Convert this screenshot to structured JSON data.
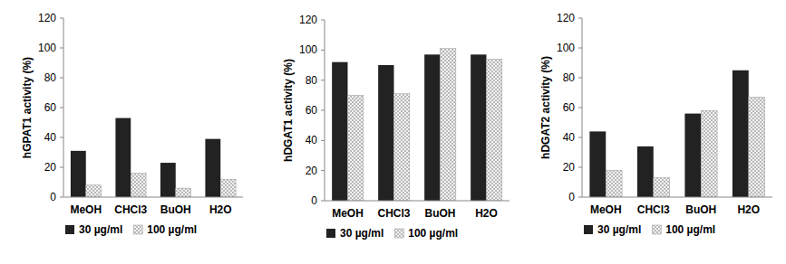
{
  "chart_data": [
    {
      "type": "bar",
      "y_label": "hGPAT1 activity (%)",
      "categories": [
        "MeOH",
        "CHCl3",
        "BuOH",
        "H2O"
      ],
      "series": [
        {
          "name": "30 µg/ml",
          "color": "#222222",
          "values": [
            31,
            53,
            23,
            39
          ]
        },
        {
          "name": "100 µg/ml",
          "color": "#f2f2f2",
          "values": [
            8,
            16,
            6,
            12
          ]
        }
      ],
      "ylim": [
        0,
        120
      ],
      "yticks": [
        0,
        20,
        40,
        60,
        80,
        100,
        120
      ],
      "grid": false,
      "legend": "bottom"
    },
    {
      "type": "bar",
      "y_label": "hDGAT1 activity (%)",
      "categories": [
        "MeOH",
        "CHCl3",
        "BuOH",
        "H2O"
      ],
      "series": [
        {
          "name": "30 µg/ml",
          "color": "#222222",
          "values": [
            92,
            90,
            97,
            97
          ]
        },
        {
          "name": "100 µg/ml",
          "color": "#f2f2f2",
          "values": [
            70,
            71,
            101,
            94
          ]
        }
      ],
      "ylim": [
        0,
        120
      ],
      "yticks": [
        0,
        20,
        40,
        60,
        80,
        100,
        120
      ],
      "grid": false,
      "legend": "bottom"
    },
    {
      "type": "bar",
      "y_label": "hDGAT2 activity (%)",
      "categories": [
        "MeOH",
        "CHCl3",
        "BuOH",
        "H2O"
      ],
      "series": [
        {
          "name": "30 µg/ml",
          "color": "#222222",
          "values": [
            44,
            34,
            56,
            85
          ]
        },
        {
          "name": "100 µg/ml",
          "color": "#f2f2f2",
          "values": [
            18,
            13,
            58,
            67
          ]
        }
      ],
      "ylim": [
        0,
        120
      ],
      "yticks": [
        0,
        20,
        40,
        60,
        80,
        100,
        120
      ],
      "grid": false,
      "legend": "bottom"
    }
  ]
}
